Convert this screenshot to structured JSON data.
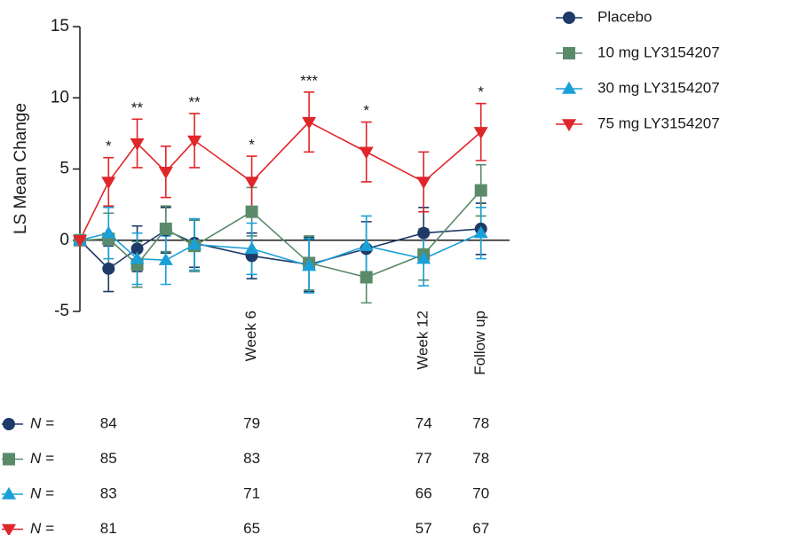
{
  "chart_data": {
    "type": "line",
    "y_label": "LS Mean Change",
    "x": [
      0,
      1,
      2,
      3,
      4,
      6,
      8,
      10,
      12,
      14
    ],
    "xlim": [
      0,
      15
    ],
    "xticks": [
      {
        "value": 6,
        "label": "Week 6"
      },
      {
        "value": 12,
        "label": "Week 12"
      },
      {
        "value": 14,
        "label": "Follow up"
      }
    ],
    "ylim": [
      -5,
      15
    ],
    "yticks": [
      15,
      10,
      5,
      0,
      -5
    ],
    "series": [
      {
        "name": "Placebo",
        "color": "#1f3a68",
        "marker": "circle",
        "values": [
          0,
          -2.0,
          -0.6,
          0.7,
          -0.2,
          -1.1,
          -1.7,
          -0.6,
          0.5,
          0.8
        ],
        "errors": [
          null,
          1.6,
          1.6,
          1.6,
          1.7,
          1.6,
          1.9,
          1.9,
          1.8,
          1.8
        ],
        "n": [
          84,
          79,
          74,
          78
        ]
      },
      {
        "name": "10 mg LY3154207",
        "color": "#5a8a6a",
        "marker": "square",
        "values": [
          0,
          0.1,
          -1.7,
          0.8,
          -0.4,
          2.0,
          -1.6,
          -2.6,
          -1.0,
          3.5
        ],
        "errors": [
          null,
          1.8,
          1.6,
          1.6,
          1.8,
          1.7,
          1.9,
          1.8,
          1.8,
          1.8
        ],
        "n": [
          85,
          83,
          77,
          78
        ]
      },
      {
        "name": "30 mg LY3154207",
        "color": "#1aa0d8",
        "marker": "triangle-up",
        "values": [
          0,
          0.5,
          -1.3,
          -1.4,
          -0.3,
          -0.6,
          -1.8,
          -0.4,
          -1.3,
          0.5
        ],
        "errors": [
          null,
          1.8,
          1.8,
          1.7,
          1.8,
          1.8,
          1.9,
          2.1,
          1.9,
          1.8
        ],
        "n": [
          83,
          71,
          66,
          70
        ]
      },
      {
        "name": "75 mg LY3154207",
        "color": "#e0262a",
        "marker": "triangle-down",
        "values": [
          0,
          4.1,
          6.8,
          4.8,
          7.0,
          4.1,
          8.3,
          6.2,
          4.1,
          7.6
        ],
        "errors": [
          null,
          1.7,
          1.7,
          1.8,
          1.9,
          1.8,
          2.1,
          2.1,
          2.1,
          2.0
        ],
        "n": [
          81,
          65,
          57,
          67
        ]
      }
    ],
    "significance": [
      null,
      "*",
      "**",
      null,
      "**",
      "*",
      "***",
      "*",
      null,
      "*"
    ],
    "n_label": "N =",
    "n_x": [
      1,
      6,
      12,
      14
    ]
  }
}
